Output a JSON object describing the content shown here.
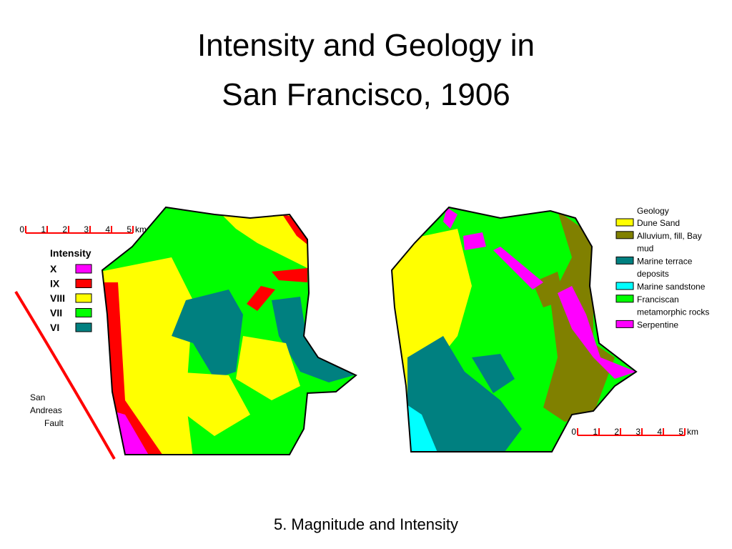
{
  "title": [
    "Intensity and Geology in",
    "San Francisco, 1906"
  ],
  "intensity_map": {
    "scale": {
      "ticks": [
        0,
        1,
        2,
        3,
        4,
        5
      ],
      "unit": "km"
    },
    "legend": {
      "title": "Intensity",
      "items": [
        {
          "label": "X",
          "color": "#ff00ff"
        },
        {
          "label": "IX",
          "color": "#ff0000"
        },
        {
          "label": "VIII",
          "color": "#ffff00"
        },
        {
          "label": "VII",
          "color": "#00ff00"
        },
        {
          "label": "VI",
          "color": "#008080"
        }
      ]
    },
    "fault_label": [
      "San",
      "Andreas",
      "Fault"
    ]
  },
  "geology_map": {
    "legend": {
      "title": "Geology",
      "items": [
        {
          "label": [
            "Dune Sand"
          ],
          "color": "#ffff00"
        },
        {
          "label": [
            "Alluvium, fill, Bay",
            "mud"
          ],
          "color": "#808000"
        },
        {
          "label": [
            "Marine terrace",
            "deposits"
          ],
          "color": "#008080"
        },
        {
          "label": [
            "Marine sandstone"
          ],
          "color": "#00ffff"
        },
        {
          "label": [
            "Franciscan",
            "metamorphic rocks"
          ],
          "color": "#00ff00"
        },
        {
          "label": [
            "Serpentine"
          ],
          "color": "#ff00ff"
        }
      ]
    },
    "scale": {
      "ticks": [
        0,
        1,
        2,
        3,
        4,
        5
      ],
      "unit": "km"
    }
  },
  "footer": "5. Magnitude and Intensity"
}
